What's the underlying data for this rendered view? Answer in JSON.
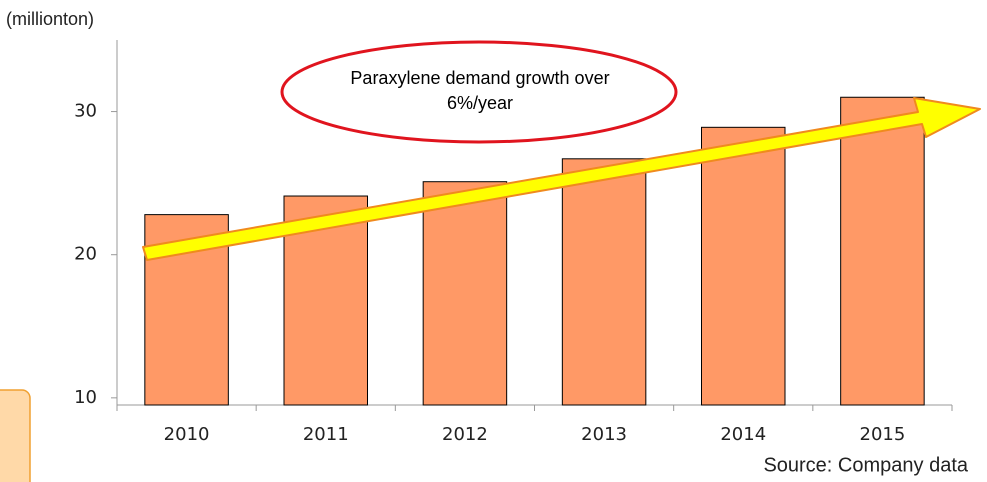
{
  "chart_data": {
    "type": "bar",
    "y_axis_label": "(millionton)",
    "annotation": "Paraxylene demand growth over 6%/year",
    "source": "Source: Company data",
    "categories": [
      "2010",
      "2011",
      "2012",
      "2013",
      "2014",
      "2015"
    ],
    "values": [
      22.8,
      24.1,
      25.1,
      26.7,
      28.9,
      31.0
    ],
    "color": "#ff9966",
    "ylim": [
      9.5,
      35
    ],
    "yticks": [
      10,
      20,
      30
    ],
    "grid": false
  }
}
